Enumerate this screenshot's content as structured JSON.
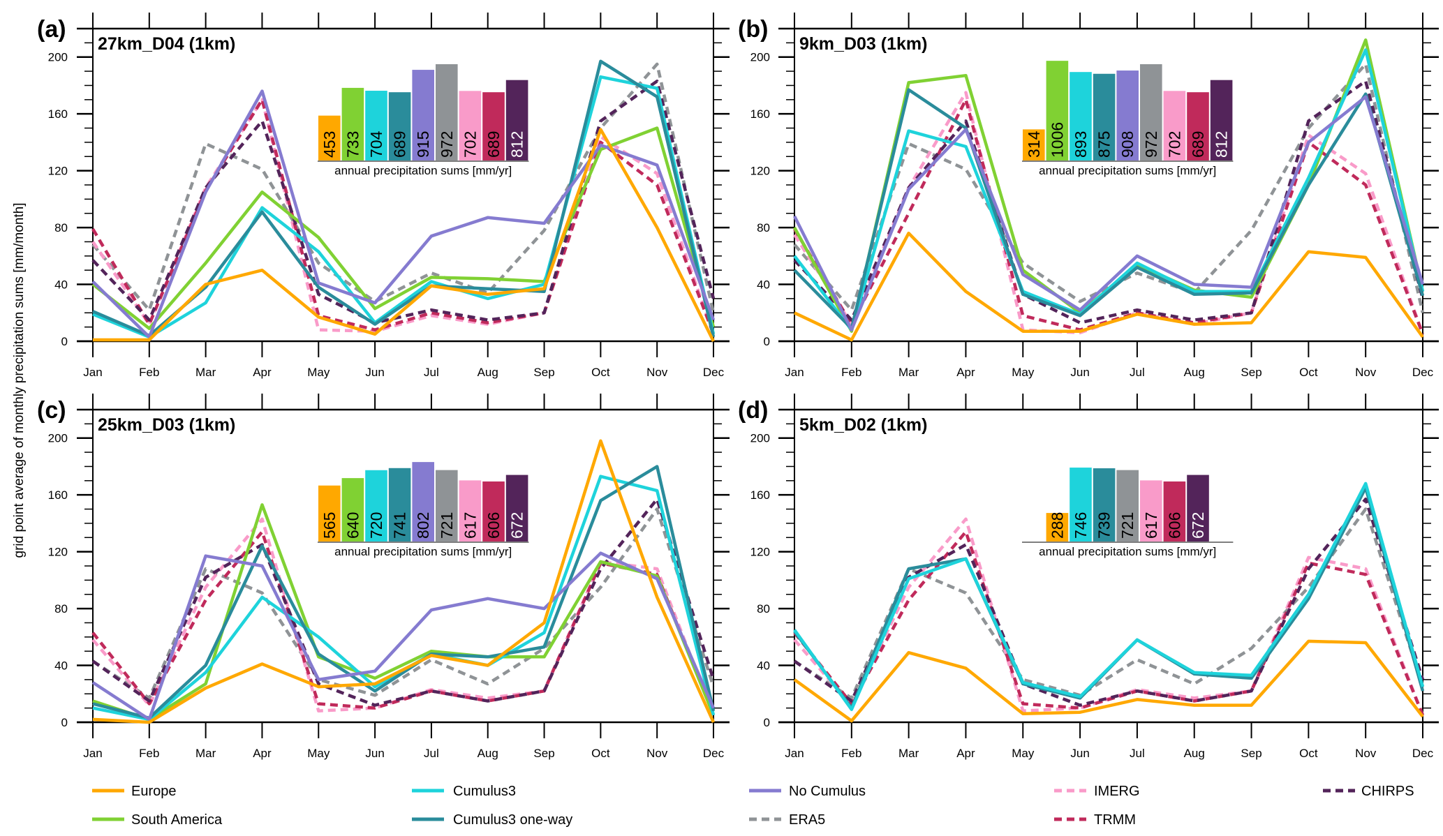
{
  "ylabel": "grid point average of monthly precipitation sums [mm/month]",
  "colors": {
    "Europe": "#FFA800",
    "South America": "#80D133",
    "Cumulus3": "#1ED3DB",
    "Cumulus3 one-way": "#2A8C9B",
    "No Cumulus": "#857BD0",
    "ERA5": "#8F9396",
    "IMERG": "#F99BC9",
    "TRMM": "#C02A5B",
    "CHIRPS": "#53245A"
  },
  "dashed_series": [
    "ERA5",
    "IMERG",
    "TRMM",
    "CHIRPS"
  ],
  "legend": [
    {
      "name": "Europe",
      "style": "solid"
    },
    {
      "name": "South America",
      "style": "solid"
    },
    {
      "name": "Cumulus3",
      "style": "solid"
    },
    {
      "name": "Cumulus3 one-way",
      "style": "solid"
    },
    {
      "name": "No Cumulus",
      "style": "solid"
    },
    {
      "name": "ERA5",
      "style": "dashed"
    },
    {
      "name": "IMERG",
      "style": "dashed"
    },
    {
      "name": "TRMM",
      "style": "dashed"
    },
    {
      "name": "CHIRPS",
      "style": "dashed"
    }
  ],
  "chart_data": [
    {
      "type": "line",
      "panel_label": "(a)",
      "title": "27km_D04 (1km)",
      "categories": [
        "Jan",
        "Feb",
        "Mar",
        "Apr",
        "May",
        "Jun",
        "Jul",
        "Aug",
        "Sep",
        "Oct",
        "Nov",
        "Dec"
      ],
      "ylim": [
        0,
        220
      ],
      "yticks": [
        0,
        40,
        80,
        120,
        160,
        200
      ],
      "series": [
        {
          "name": "ERA5",
          "values": [
            68,
            22,
            139,
            121,
            55,
            28,
            48,
            34,
            78,
            150,
            195,
            20
          ]
        },
        {
          "name": "IMERG",
          "values": [
            70,
            12,
            108,
            170,
            8,
            7,
            18,
            12,
            20,
            144,
            118,
            5
          ]
        },
        {
          "name": "TRMM",
          "values": [
            79,
            12,
            106,
            170,
            18,
            8,
            20,
            13,
            20,
            140,
            110,
            5
          ]
        },
        {
          "name": "CHIRPS",
          "values": [
            57,
            15,
            108,
            155,
            33,
            13,
            22,
            15,
            20,
            155,
            183,
            30
          ]
        },
        {
          "name": "South America",
          "values": [
            40,
            9,
            55,
            105,
            73,
            23,
            45,
            44,
            42,
            135,
            150,
            10
          ]
        },
        {
          "name": "Cumulus3",
          "values": [
            19,
            3,
            27,
            94,
            63,
            13,
            42,
            30,
            40,
            186,
            178,
            5
          ]
        },
        {
          "name": "Cumulus3 one-way",
          "values": [
            21,
            4,
            38,
            91,
            38,
            12,
            39,
            37,
            35,
            197,
            172,
            3
          ]
        },
        {
          "name": "No Cumulus",
          "values": [
            42,
            3,
            105,
            176,
            41,
            27,
            74,
            87,
            83,
            138,
            124,
            15
          ]
        },
        {
          "name": "Europe",
          "values": [
            1,
            1,
            40,
            50,
            17,
            5,
            39,
            33,
            37,
            149,
            80,
            0
          ]
        }
      ],
      "inset": {
        "type": "bar",
        "label": "annual precipitation sums [mm/yr]",
        "bars": [
          {
            "name": "Europe",
            "value": 453
          },
          {
            "name": "South America",
            "value": 733
          },
          {
            "name": "Cumulus3",
            "value": 704
          },
          {
            "name": "Cumulus3 one-way",
            "value": 689
          },
          {
            "name": "No Cumulus",
            "value": 915
          },
          {
            "name": "ERA5",
            "value": 972
          },
          {
            "name": "IMERG",
            "value": 702
          },
          {
            "name": "TRMM",
            "value": 689
          },
          {
            "name": "CHIRPS",
            "value": 812
          }
        ]
      }
    },
    {
      "type": "line",
      "panel_label": "(b)",
      "title": "9km_D03 (1km)",
      "categories": [
        "Jan",
        "Feb",
        "Mar",
        "Apr",
        "May",
        "Jun",
        "Jul",
        "Aug",
        "Sep",
        "Oct",
        "Nov",
        "Dec"
      ],
      "ylim": [
        0,
        220
      ],
      "yticks": [
        0,
        40,
        80,
        120,
        160,
        200
      ],
      "series": [
        {
          "name": "ERA5",
          "values": [
            68,
            22,
            139,
            121,
            55,
            28,
            48,
            34,
            78,
            150,
            195,
            20
          ]
        },
        {
          "name": "IMERG",
          "values": [
            75,
            12,
            108,
            175,
            8,
            6,
            20,
            12,
            20,
            145,
            118,
            5
          ]
        },
        {
          "name": "TRMM",
          "values": [
            79,
            12,
            90,
            170,
            18,
            8,
            20,
            13,
            20,
            140,
            110,
            5
          ]
        },
        {
          "name": "CHIRPS",
          "values": [
            57,
            15,
            108,
            155,
            33,
            13,
            22,
            15,
            20,
            155,
            183,
            30
          ]
        },
        {
          "name": "South America",
          "values": [
            80,
            7,
            182,
            187,
            50,
            20,
            54,
            36,
            31,
            110,
            212,
            35
          ]
        },
        {
          "name": "Cumulus3",
          "values": [
            60,
            8,
            148,
            137,
            35,
            19,
            55,
            35,
            35,
            115,
            205,
            35
          ]
        },
        {
          "name": "Cumulus3 one-way",
          "values": [
            50,
            9,
            177,
            150,
            33,
            18,
            52,
            33,
            34,
            110,
            174,
            32
          ]
        },
        {
          "name": "No Cumulus",
          "values": [
            88,
            8,
            107,
            149,
            47,
            22,
            60,
            40,
            38,
            140,
            172,
            40
          ]
        },
        {
          "name": "Europe",
          "values": [
            20,
            1,
            76,
            35,
            7,
            7,
            19,
            12,
            13,
            63,
            59,
            3
          ]
        }
      ],
      "inset": {
        "type": "bar",
        "label": "annual precipitation sums [mm/yr]",
        "bars": [
          {
            "name": "Europe",
            "value": 314
          },
          {
            "name": "South America",
            "value": 1006
          },
          {
            "name": "Cumulus3",
            "value": 893
          },
          {
            "name": "Cumulus3 one-way",
            "value": 875
          },
          {
            "name": "No Cumulus",
            "value": 908
          },
          {
            "name": "ERA5",
            "value": 972
          },
          {
            "name": "IMERG",
            "value": 702
          },
          {
            "name": "TRMM",
            "value": 689
          },
          {
            "name": "CHIRPS",
            "value": 812
          }
        ]
      }
    },
    {
      "type": "line",
      "panel_label": "(c)",
      "title": "25km_D03 (1km)",
      "categories": [
        "Jan",
        "Feb",
        "Mar",
        "Apr",
        "May",
        "Jun",
        "Jul",
        "Aug",
        "Sep",
        "Oct",
        "Nov",
        "Dec"
      ],
      "ylim": [
        0,
        220
      ],
      "yticks": [
        0,
        40,
        80,
        120,
        160,
        200
      ],
      "series": [
        {
          "name": "ERA5",
          "values": [
            43,
            17,
            108,
            91,
            30,
            19,
            44,
            27,
            52,
            95,
            150,
            25
          ]
        },
        {
          "name": "IMERG",
          "values": [
            58,
            12,
            95,
            143,
            8,
            10,
            23,
            17,
            22,
            113,
            108,
            5
          ]
        },
        {
          "name": "TRMM",
          "values": [
            63,
            13,
            86,
            134,
            13,
            10,
            22,
            15,
            22,
            112,
            104,
            5
          ]
        },
        {
          "name": "CHIRPS",
          "values": [
            43,
            15,
            102,
            125,
            27,
            12,
            22,
            15,
            22,
            108,
            157,
            30
          ]
        },
        {
          "name": "South America",
          "values": [
            15,
            2,
            27,
            153,
            46,
            31,
            50,
            46,
            46,
            113,
            103,
            5
          ]
        },
        {
          "name": "Cumulus3",
          "values": [
            10,
            2,
            35,
            88,
            60,
            25,
            48,
            40,
            63,
            173,
            163,
            5
          ]
        },
        {
          "name": "Cumulus3 one-way",
          "values": [
            13,
            3,
            40,
            124,
            48,
            22,
            48,
            46,
            53,
            156,
            180,
            8
          ]
        },
        {
          "name": "No Cumulus",
          "values": [
            28,
            2,
            117,
            110,
            30,
            36,
            79,
            87,
            80,
            119,
            101,
            10
          ]
        },
        {
          "name": "Europe",
          "values": [
            2,
            0,
            24,
            41,
            25,
            27,
            47,
            40,
            70,
            198,
            88,
            0
          ]
        }
      ],
      "inset": {
        "type": "bar",
        "label": "annual precipitation sums [mm/yr]",
        "bars": [
          {
            "name": "Europe",
            "value": 565
          },
          {
            "name": "South America",
            "value": 640
          },
          {
            "name": "Cumulus3",
            "value": 720
          },
          {
            "name": "Cumulus3 one-way",
            "value": 741
          },
          {
            "name": "No Cumulus",
            "value": 802
          },
          {
            "name": "ERA5",
            "value": 721
          },
          {
            "name": "IMERG",
            "value": 617
          },
          {
            "name": "TRMM",
            "value": 606
          },
          {
            "name": "CHIRPS",
            "value": 672
          }
        ]
      }
    },
    {
      "type": "line",
      "panel_label": "(d)",
      "title": "5km_D02 (1km)",
      "categories": [
        "Jan",
        "Feb",
        "Mar",
        "Apr",
        "May",
        "Jun",
        "Jul",
        "Aug",
        "Sep",
        "Oct",
        "Nov",
        "Dec"
      ],
      "ylim": [
        0,
        220
      ],
      "yticks": [
        0,
        40,
        80,
        120,
        160,
        200
      ],
      "series": [
        {
          "name": "ERA5",
          "values": [
            43,
            17,
            108,
            91,
            30,
            19,
            44,
            27,
            52,
            95,
            150,
            25
          ]
        },
        {
          "name": "IMERG",
          "values": [
            58,
            12,
            95,
            143,
            8,
            10,
            23,
            17,
            22,
            116,
            108,
            5
          ]
        },
        {
          "name": "TRMM",
          "values": [
            63,
            13,
            86,
            134,
            13,
            10,
            22,
            15,
            22,
            112,
            104,
            5
          ]
        },
        {
          "name": "CHIRPS",
          "values": [
            43,
            15,
            102,
            125,
            27,
            12,
            22,
            15,
            22,
            108,
            157,
            30
          ]
        },
        {
          "name": "Cumulus3 one-way",
          "values": [
            64,
            10,
            108,
            115,
            27,
            17,
            58,
            34,
            31,
            87,
            165,
            22
          ]
        },
        {
          "name": "Cumulus3",
          "values": [
            65,
            9,
            101,
            115,
            28,
            18,
            58,
            35,
            33,
            90,
            168,
            25
          ]
        },
        {
          "name": "Europe",
          "values": [
            30,
            1,
            49,
            38,
            6,
            7,
            16,
            12,
            12,
            57,
            56,
            4
          ]
        }
      ],
      "inset": {
        "type": "bar",
        "label": "annual precipitation sums [mm/yr]",
        "bars": [
          {
            "name": "Europe",
            "value": 288
          },
          {
            "name": "Cumulus3",
            "value": 746
          },
          {
            "name": "Cumulus3 one-way",
            "value": 739
          },
          {
            "name": "ERA5",
            "value": 721
          },
          {
            "name": "IMERG",
            "value": 617
          },
          {
            "name": "TRMM",
            "value": 606
          },
          {
            "name": "CHIRPS",
            "value": 672
          }
        ]
      }
    }
  ]
}
